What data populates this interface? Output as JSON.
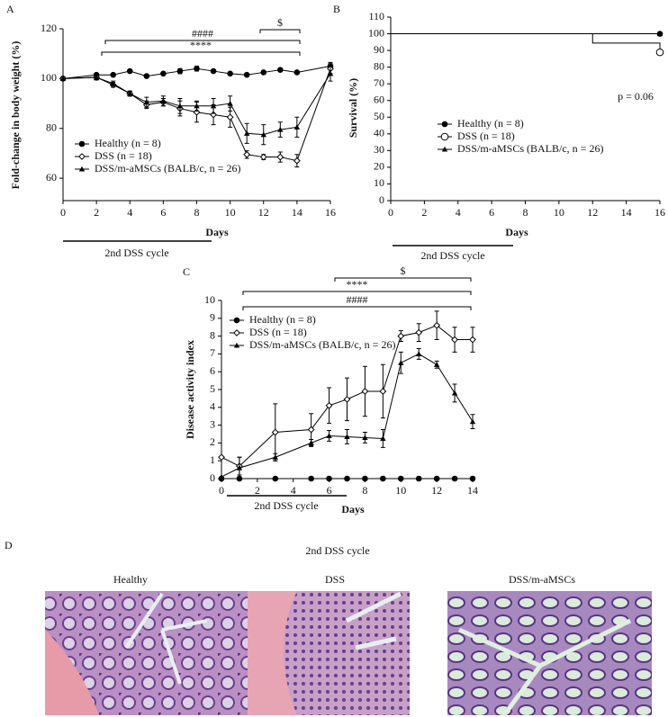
{
  "chart_data": [
    {
      "type": "line",
      "panel": "A",
      "xlabel": "Days",
      "ylabel": "Fold-change in body weight (%)",
      "cycle_label": "2nd DSS cycle",
      "xlim": [
        0,
        16
      ],
      "xticks": [
        0,
        2,
        4,
        6,
        8,
        10,
        12,
        14,
        16
      ],
      "ylim": [
        51,
        120
      ],
      "yticks": [
        60,
        80,
        100,
        120
      ],
      "legend": "lower left",
      "annotations": [
        "####",
        "$",
        "****"
      ],
      "x": [
        0,
        2,
        3,
        4,
        5,
        6,
        7,
        8,
        9,
        10,
        11,
        12,
        13,
        14,
        16
      ],
      "series": [
        {
          "name": "Healthy (n = 8)",
          "marker": "circle",
          "color": "#000000",
          "values": [
            100,
            101.5,
            101.5,
            103,
            101,
            102,
            103,
            104,
            103,
            102,
            101.5,
            102.5,
            103.5,
            102.5,
            105
          ],
          "errors": [
            0,
            0.5,
            0.5,
            0.5,
            0.5,
            0.5,
            1,
            1,
            0.5,
            0.5,
            0.5,
            0.5,
            0.5,
            0.5,
            1.5
          ]
        },
        {
          "name": "DSS (n = 18)",
          "marker": "diamond",
          "color": "#000000",
          "values": [
            100,
            100.5,
            97.5,
            94,
            89.5,
            90.5,
            88,
            86.5,
            85.5,
            84.5,
            69.5,
            68.5,
            68.5,
            67,
            104
          ],
          "errors": [
            0,
            1,
            1,
            1,
            1.5,
            1.5,
            3,
            4,
            4,
            4,
            1.5,
            1,
            2,
            2.5,
            2
          ]
        },
        {
          "name": "DSS/m-aMSCs (BALB/c, n = 26)",
          "marker": "triangle",
          "color": "#000000",
          "values": [
            100,
            100.5,
            98,
            94,
            90.5,
            91,
            89,
            89,
            89,
            90,
            78,
            77.5,
            79.5,
            80.5,
            102
          ],
          "errors": [
            0,
            1,
            1,
            1,
            2,
            2,
            3,
            2,
            3,
            3,
            4,
            4,
            3,
            4,
            3
          ]
        }
      ]
    },
    {
      "type": "step",
      "panel": "B",
      "xlabel": "Days",
      "ylabel": "Survival (%)",
      "cycle_label": "2nd DSS cycle",
      "xlim": [
        0,
        16
      ],
      "xticks": [
        0,
        2,
        4,
        6,
        8,
        10,
        12,
        14,
        16
      ],
      "ylim": [
        0,
        110
      ],
      "yticks": [
        0,
        10,
        20,
        30,
        40,
        50,
        60,
        70,
        80,
        90,
        100,
        110
      ],
      "legend": "center",
      "annotations": [
        "p = 0.06"
      ],
      "series": [
        {
          "name": "Healthy (n = 8)",
          "marker": "circle",
          "color": "#000000",
          "x": [
            0,
            16
          ],
          "values": [
            100,
            100
          ]
        },
        {
          "name": "DSS (n = 18)",
          "marker": "open-circle",
          "color": "#000000",
          "x": [
            0,
            12,
            12,
            16,
            16
          ],
          "values": [
            100,
            100,
            94.4,
            94.4,
            88.9
          ]
        },
        {
          "name": "DSS/m-aMSCs (BALB/c, n = 26)",
          "marker": "triangle",
          "color": "#000000",
          "x": [
            0,
            16
          ],
          "values": [
            100,
            100
          ]
        }
      ]
    },
    {
      "type": "line",
      "panel": "C",
      "xlabel": "Days",
      "ylabel": "Disease activity index",
      "cycle_label": "2nd DSS cycle",
      "xlim": [
        0,
        14
      ],
      "xticks": [
        0,
        2,
        4,
        6,
        8,
        10,
        12,
        14
      ],
      "ylim": [
        0,
        10
      ],
      "yticks": [
        0,
        1,
        2,
        3,
        4,
        5,
        6,
        7,
        8,
        9,
        10
      ],
      "legend": "upper left",
      "annotations": [
        "$",
        "****",
        "####"
      ],
      "x": [
        0,
        1,
        3,
        5,
        6,
        7,
        8,
        9,
        10,
        11,
        12,
        13,
        14
      ],
      "series": [
        {
          "name": "Healthy (n = 8)",
          "marker": "circle",
          "color": "#000000",
          "values": [
            0,
            0,
            0,
            0,
            0,
            0,
            0,
            0,
            0,
            0,
            0,
            0,
            0
          ],
          "errors": [
            0,
            0,
            0,
            0,
            0,
            0,
            0,
            0,
            0,
            0,
            0,
            0,
            0
          ]
        },
        {
          "name": "DSS (n = 18)",
          "marker": "diamond",
          "color": "#000000",
          "values": [
            1.2,
            0.7,
            2.6,
            2.75,
            4.1,
            4.45,
            4.9,
            4.9,
            8,
            8.2,
            8.6,
            7.8,
            7.8
          ],
          "errors": [
            0,
            0.5,
            1.6,
            0.9,
            1,
            1.2,
            1.4,
            1.5,
            0.3,
            0.5,
            0.8,
            0.7,
            0.7
          ]
        },
        {
          "name": "DSS/m-aMSCs (BALB/c, n = 26)",
          "marker": "triangle",
          "color": "#000000",
          "values": [
            0.1,
            0.6,
            1.2,
            2,
            2.4,
            2.35,
            2.3,
            2.25,
            6.5,
            7,
            6.4,
            4.8,
            3.2
          ],
          "errors": [
            0,
            0.6,
            0.2,
            0.2,
            0.3,
            0.4,
            0.3,
            0.5,
            0.6,
            0.3,
            0.2,
            0.5,
            0.4
          ]
        }
      ]
    }
  ],
  "panel_d": {
    "label": "D",
    "title": "2nd DSS cycle",
    "images": [
      "Healthy",
      "DSS",
      "DSS/m-aMSCs"
    ]
  }
}
